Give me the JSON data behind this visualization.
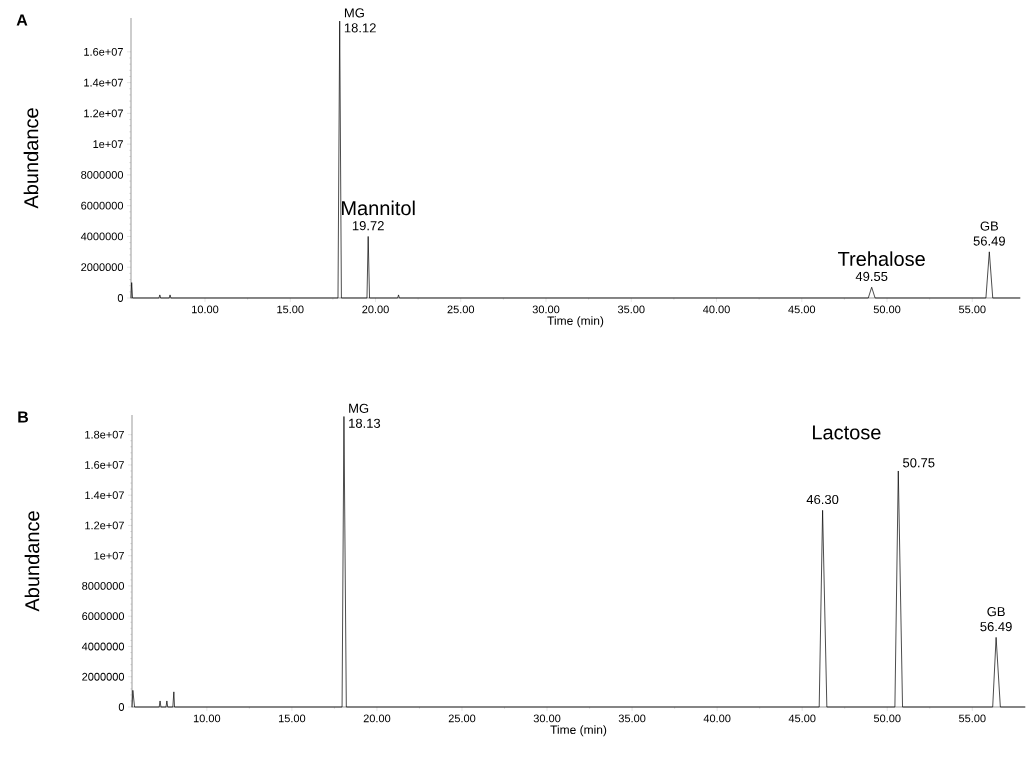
{
  "chart_data": [
    {
      "type": "line",
      "title": "A",
      "xlabel": "Time (min)",
      "ylabel": "Abundance",
      "x": [
        5.66,
        5.7,
        5.75,
        7.3,
        7.35,
        7.4,
        7.9,
        7.95,
        8.0,
        17.8,
        17.9,
        18.0,
        19.5,
        19.57,
        19.65,
        21.3,
        21.35,
        21.4,
        48.9,
        49.1,
        49.3,
        55.8,
        56.0,
        56.2,
        57.8
      ],
      "series": [
        {
          "color": "#000000",
          "values": [
            0,
            1000000,
            0,
            0,
            200000,
            0,
            0,
            200000,
            0,
            0,
            18000000,
            0,
            0,
            4000000,
            0,
            0,
            200000,
            0,
            0,
            700000,
            0,
            0,
            3000000,
            0,
            0
          ]
        }
      ],
      "xlim": [
        5.66,
        57.8
      ],
      "ylim": [
        0,
        18200000
      ],
      "xticks": [
        {
          "value": 10,
          "label": "10.00"
        },
        {
          "value": 15,
          "label": "15.00"
        },
        {
          "value": 20,
          "label": "20.00"
        },
        {
          "value": 25,
          "label": "25.00"
        },
        {
          "value": 30,
          "label": "30.00"
        },
        {
          "value": 35,
          "label": "35.00"
        },
        {
          "value": 40,
          "label": "40.00"
        },
        {
          "value": 45,
          "label": "45.00"
        },
        {
          "value": 50,
          "label": "50.00"
        },
        {
          "value": 55,
          "label": "55.00"
        }
      ],
      "yticks": [
        0,
        2000000,
        4000000,
        6000000,
        8000000,
        {
          "value": 10000000,
          "label": "1e+07"
        },
        {
          "value": 12000000,
          "label": "1.2e+07"
        },
        {
          "value": 14000000,
          "label": "1.4e+07"
        },
        {
          "value": 16000000,
          "label": "1.6e+07"
        }
      ],
      "annotations": [
        {
          "text": "MG",
          "x": 17.9,
          "y": 18000000
        },
        {
          "text": "18.12",
          "x": 17.9,
          "y": 18000000
        },
        {
          "text": "Mannitol",
          "x": 19.57,
          "y": 4000000
        },
        {
          "text": "19.72",
          "x": 19.57,
          "y": 4000000
        },
        {
          "text": "Trehalose",
          "x": 49.1,
          "y": 700000
        },
        {
          "text": "49.55",
          "x": 49.1,
          "y": 700000
        },
        {
          "text": "GB",
          "x": 56.0,
          "y": 3000000
        },
        {
          "text": "56.49",
          "x": 56.0,
          "y": 3000000
        }
      ]
    },
    {
      "type": "line",
      "title": "B",
      "xlabel": "Time (min)",
      "ylabel": "Abundance",
      "x": [
        5.6,
        5.65,
        5.75,
        7.2,
        7.25,
        7.3,
        7.6,
        7.65,
        7.7,
        8.0,
        8.06,
        8.1,
        17.95,
        18.06,
        18.2,
        46.0,
        46.2,
        46.45,
        50.45,
        50.65,
        50.9,
        56.2,
        56.4,
        56.65,
        58.1
      ],
      "series": [
        {
          "color": "#000000",
          "values": [
            0,
            1100000,
            0,
            0,
            400000,
            0,
            0,
            400000,
            0,
            0,
            1000000,
            0,
            0,
            19200000,
            0,
            0,
            13000000,
            0,
            0,
            15600000,
            0,
            0,
            4600000,
            0,
            0
          ]
        }
      ],
      "xlim": [
        5.6,
        58.1
      ],
      "ylim": [
        0,
        19300000
      ],
      "xticks": [
        {
          "value": 10,
          "label": "10.00"
        },
        {
          "value": 15,
          "label": "15.00"
        },
        {
          "value": 20,
          "label": "20.00"
        },
        {
          "value": 25,
          "label": "25.00"
        },
        {
          "value": 30,
          "label": "30.00"
        },
        {
          "value": 35,
          "label": "35.00"
        },
        {
          "value": 40,
          "label": "40.00"
        },
        {
          "value": 45,
          "label": "45.00"
        },
        {
          "value": 50,
          "label": "50.00"
        },
        {
          "value": 55,
          "label": "55.00"
        }
      ],
      "yticks": [
        0,
        2000000,
        4000000,
        6000000,
        8000000,
        {
          "value": 10000000,
          "label": "1e+07"
        },
        {
          "value": 12000000,
          "label": "1.2e+07"
        },
        {
          "value": 14000000,
          "label": "1.4e+07"
        },
        {
          "value": 16000000,
          "label": "1.6e+07"
        },
        {
          "value": 18000000,
          "label": "1.8e+07"
        }
      ],
      "annotations": [
        {
          "text": "MG",
          "x": 18.06,
          "y": 19200000
        },
        {
          "text": "18.13",
          "x": 18.06,
          "y": 19200000
        },
        "Lactose",
        {
          "text": "46.30",
          "x": 46.2,
          "y": 13000000
        },
        {
          "text": "50.75",
          "x": 50.65,
          "y": 15600000
        },
        {
          "text": "GB",
          "x": 56.4,
          "y": 4600000
        },
        {
          "text": "56.49",
          "x": 56.4,
          "y": 4600000
        }
      ]
    }
  ]
}
